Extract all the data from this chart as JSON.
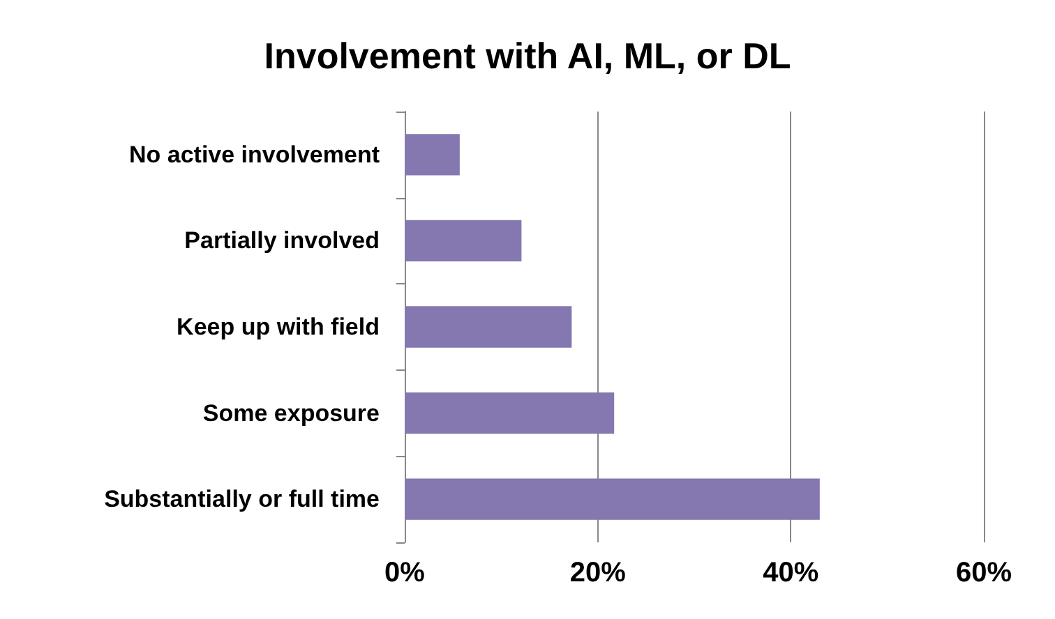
{
  "chart_data": {
    "type": "bar",
    "orientation": "horizontal",
    "title": "Involvement with AI, ML, or DL",
    "categories": [
      "No active involvement",
      "Partially involved",
      "Keep up with field",
      "Some exposure",
      "Substantially or full time"
    ],
    "values": [
      5.7,
      12.1,
      17.3,
      21.7,
      43.0
    ],
    "color": "#8577b0",
    "xlim": [
      0,
      60
    ],
    "xticks": [
      {
        "value": 0,
        "label": "0%"
      },
      {
        "value": 20,
        "label": "20%"
      },
      {
        "value": 40,
        "label": "40%"
      },
      {
        "value": 60,
        "label": "60%"
      }
    ],
    "grid": "x"
  }
}
